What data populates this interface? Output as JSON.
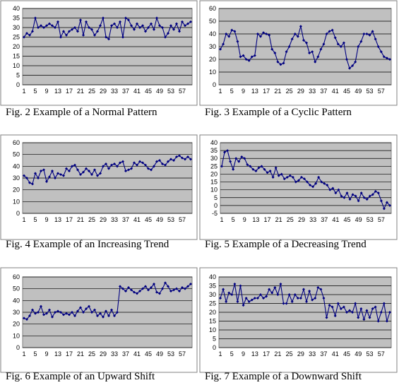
{
  "colors": {
    "plot_bg": "#c0c0c0",
    "line": "#000080",
    "grid": "#000000",
    "frame": "#808080"
  },
  "chart_data": [
    {
      "type": "line",
      "caption": "Fig. 2 Example of a Normal Pattern",
      "title": "",
      "xlabel": "",
      "ylabel": "",
      "ylim": [
        0,
        40
      ],
      "yticks": [
        "0",
        "5",
        "10",
        "15",
        "20",
        "25",
        "30",
        "35",
        "40"
      ],
      "xticks": [
        "1",
        "5",
        "9",
        "13",
        "17",
        "21",
        "25",
        "29",
        "33",
        "37",
        "41",
        "45",
        "49",
        "53",
        "57"
      ],
      "series": [
        {
          "values": [
            25,
            27,
            26,
            28,
            35,
            30,
            31,
            30,
            31,
            32,
            31,
            30,
            33,
            25,
            28,
            26,
            28,
            29,
            30,
            28,
            34,
            26,
            33,
            30,
            29,
            26,
            28,
            31,
            35,
            25,
            24,
            31,
            32,
            30,
            33,
            25,
            35,
            34,
            31,
            29,
            32,
            30,
            31,
            28,
            30,
            32,
            29,
            35,
            31,
            30,
            25,
            27,
            31,
            29,
            32,
            28,
            33,
            31,
            32,
            33
          ]
        }
      ]
    },
    {
      "type": "line",
      "caption": "Fig. 3 Example of a Cyclic Pattern",
      "title": "",
      "xlabel": "",
      "ylabel": "",
      "ylim": [
        0,
        60
      ],
      "yticks": [
        "0",
        "10",
        "20",
        "30",
        "40",
        "50",
        "60"
      ],
      "xticks": [
        "1",
        "5",
        "9",
        "13",
        "17",
        "21",
        "25",
        "29",
        "33",
        "37",
        "41",
        "45",
        "49",
        "53",
        "57"
      ],
      "series": [
        {
          "values": [
            28,
            32,
            40,
            38,
            43,
            42,
            34,
            22,
            23,
            20,
            19,
            22,
            23,
            40,
            38,
            41,
            40,
            39,
            28,
            25,
            18,
            16,
            17,
            26,
            30,
            36,
            40,
            38,
            46,
            35,
            33,
            25,
            26,
            18,
            22,
            28,
            32,
            40,
            42,
            43,
            37,
            32,
            30,
            33,
            20,
            13,
            15,
            18,
            30,
            34,
            40,
            40,
            39,
            42,
            36,
            30,
            26,
            22,
            21,
            20
          ]
        }
      ]
    },
    {
      "type": "line",
      "caption": "Fig. 4 Example of an Increasing Trend",
      "title": "",
      "xlabel": "",
      "ylabel": "",
      "ylim": [
        0,
        60
      ],
      "yticks": [
        "0",
        "10",
        "20",
        "30",
        "40",
        "50",
        "60"
      ],
      "xticks": [
        "1",
        "5",
        "9",
        "13",
        "17",
        "21",
        "25",
        "29",
        "33",
        "37",
        "41",
        "45",
        "49",
        "53",
        "57"
      ],
      "series": [
        {
          "values": [
            32,
            30,
            26,
            25,
            34,
            30,
            36,
            37,
            27,
            31,
            36,
            30,
            34,
            33,
            32,
            38,
            36,
            40,
            41,
            37,
            33,
            35,
            38,
            36,
            33,
            37,
            32,
            34,
            40,
            42,
            38,
            41,
            42,
            40,
            43,
            44,
            36,
            37,
            38,
            43,
            41,
            44,
            43,
            41,
            38,
            37,
            40,
            44,
            45,
            42,
            41,
            44,
            46,
            45,
            48,
            49,
            47,
            46,
            48,
            46
          ]
        }
      ]
    },
    {
      "type": "line",
      "caption": "Fig. 5 Example of a Decreasing Trend",
      "title": "",
      "xlabel": "",
      "ylabel": "",
      "ylim": [
        -5,
        40
      ],
      "yticks": [
        "-5",
        "0",
        "5",
        "10",
        "15",
        "20",
        "25",
        "30",
        "35",
        "40"
      ],
      "xticks": [
        "1",
        "5",
        "9",
        "13",
        "17",
        "21",
        "25",
        "29",
        "33",
        "37",
        "41",
        "45",
        "49",
        "53",
        "57"
      ],
      "series": [
        {
          "values": [
            25,
            34,
            35,
            28,
            23,
            30,
            28,
            31,
            30,
            26,
            25,
            23,
            22,
            24,
            25,
            23,
            21,
            22,
            18,
            24,
            19,
            20,
            17,
            18,
            19,
            18,
            15,
            16,
            18,
            17,
            15,
            13,
            12,
            14,
            18,
            15,
            14,
            13,
            10,
            11,
            8,
            10,
            6,
            5,
            8,
            4,
            7,
            6,
            3,
            8,
            5,
            4,
            6,
            7,
            9,
            8,
            3,
            -2,
            2,
            0
          ]
        }
      ]
    },
    {
      "type": "line",
      "caption": "Fig. 6 Example of an Upward Shift",
      "title": "",
      "xlabel": "",
      "ylabel": "",
      "ylim": [
        0,
        60
      ],
      "yticks": [
        "0",
        "10",
        "20",
        "30",
        "40",
        "50",
        "60"
      ],
      "xticks": [
        "1",
        "5",
        "9",
        "13",
        "17",
        "21",
        "25",
        "29",
        "33",
        "37",
        "41",
        "45",
        "49",
        "53",
        "57"
      ],
      "series": [
        {
          "values": [
            25,
            24,
            27,
            32,
            29,
            30,
            35,
            28,
            29,
            32,
            26,
            30,
            31,
            30,
            28,
            29,
            28,
            30,
            27,
            31,
            34,
            30,
            33,
            35,
            30,
            32,
            27,
            29,
            26,
            31,
            27,
            32,
            27,
            30,
            52,
            50,
            48,
            51,
            49,
            47,
            46,
            48,
            50,
            52,
            49,
            51,
            54,
            47,
            46,
            50,
            55,
            52,
            48,
            49,
            50,
            48,
            51,
            50,
            52,
            54
          ]
        }
      ]
    },
    {
      "type": "line",
      "caption": "Fig. 7 Example of a Downward Shift",
      "title": "",
      "xlabel": "",
      "ylabel": "",
      "ylim": [
        0,
        40
      ],
      "yticks": [
        "0",
        "5",
        "10",
        "15",
        "20",
        "25",
        "30",
        "35",
        "40"
      ],
      "xticks": [
        "1",
        "5",
        "9",
        "13",
        "17",
        "21",
        "25",
        "29",
        "33",
        "37",
        "41",
        "45",
        "49",
        "53",
        "57"
      ],
      "series": [
        {
          "values": [
            28,
            33,
            26,
            31,
            30,
            36,
            26,
            35,
            24,
            28,
            26,
            27,
            28,
            28,
            30,
            28,
            29,
            33,
            31,
            34,
            30,
            36,
            25,
            25,
            30,
            26,
            30,
            28,
            28,
            33,
            26,
            32,
            27,
            28,
            34,
            33,
            28,
            17,
            24,
            23,
            18,
            25,
            22,
            23,
            20,
            21,
            20,
            25,
            17,
            22,
            16,
            21,
            17,
            22,
            23,
            15,
            20,
            25,
            15,
            20
          ]
        }
      ]
    }
  ]
}
